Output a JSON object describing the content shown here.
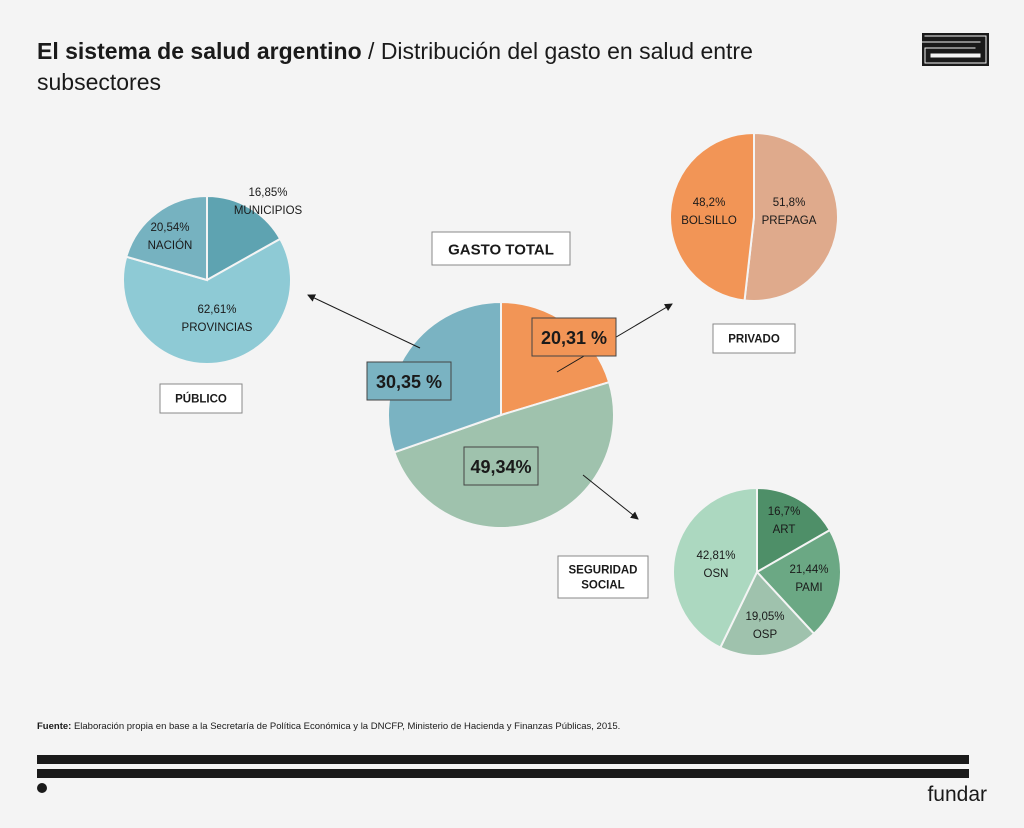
{
  "header": {
    "title_bold": "El sistema de salud argentino",
    "title_rest": " / Distribución del gasto en salud entre subsectores"
  },
  "chart_data": [
    {
      "type": "pie",
      "title": "GASTO TOTAL",
      "slices": [
        {
          "label": "20,31 %",
          "value": 20.31,
          "color": "#f29556"
        },
        {
          "label": "49,34%",
          "value": 49.34,
          "color": "#9fc2ad"
        },
        {
          "label": "30,35 %",
          "value": 30.35,
          "color": "#7ab3c2"
        }
      ]
    },
    {
      "type": "pie",
      "title": "PÚBLICO",
      "slices": [
        {
          "label": "MUNICIPIOS",
          "pct": "16,85%",
          "value": 16.85,
          "color": "#5ea3b1"
        },
        {
          "label": "PROVINCIAS",
          "pct": "62,61%",
          "value": 62.61,
          "color": "#8ecad5"
        },
        {
          "label": "NACIÓN",
          "pct": "20,54%",
          "value": 20.54,
          "color": "#76b2c0"
        }
      ]
    },
    {
      "type": "pie",
      "title": "PRIVADO",
      "slices": [
        {
          "label": "PREPAGA",
          "pct": "51,8%",
          "value": 51.8,
          "color": "#dfaa8c"
        },
        {
          "label": "BOLSILLO",
          "pct": "48,2%",
          "value": 48.2,
          "color": "#f29556"
        }
      ]
    },
    {
      "type": "pie",
      "title": "SEGURIDAD SOCIAL",
      "slices": [
        {
          "label": "ART",
          "pct": "16,7%",
          "value": 16.7,
          "color": "#4e8f68"
        },
        {
          "label": "PAMI",
          "pct": "21,44%",
          "value": 21.44,
          "color": "#6ba884"
        },
        {
          "label": "OSP",
          "pct": "19,05%",
          "value": 19.05,
          "color": "#9fc2ad"
        },
        {
          "label": "OSN",
          "pct": "42,81%",
          "value": 42.81,
          "color": "#acd8c0"
        }
      ]
    }
  ],
  "footer": {
    "source_label": "Fuente:",
    "source_text": " Elaboración propia en base a la Secretaría de Política Económica y la DNCFP, Ministerio de Hacienda y Finanzas Públicas, 2015.",
    "brand": "fundar"
  }
}
